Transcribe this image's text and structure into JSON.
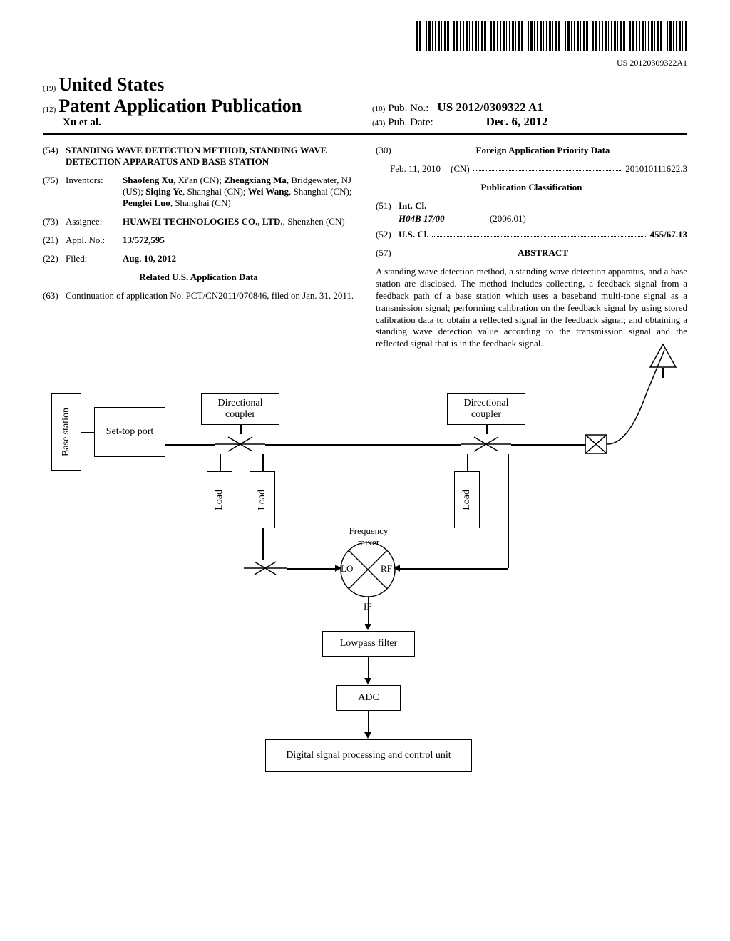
{
  "barcode_text": "US 20120309322A1",
  "header": {
    "code19": "(19)",
    "country": "United States",
    "code12": "(12)",
    "pub_type": "Patent Application Publication",
    "authors": "Xu et al.",
    "code10": "(10)",
    "pubno_label": "Pub. No.:",
    "pubno": "US 2012/0309322 A1",
    "code43": "(43)",
    "pubdate_label": "Pub. Date:",
    "pubdate": "Dec. 6, 2012"
  },
  "left_col": {
    "f54": {
      "code": "(54)",
      "value": "STANDING WAVE DETECTION METHOD, STANDING WAVE DETECTION APPARATUS AND BASE STATION"
    },
    "f75": {
      "code": "(75)",
      "label": "Inventors:",
      "value_html": "<b>Shaofeng Xu</b>, Xi'an (CN); <b>Zhengxiang Ma</b>, Bridgewater, NJ (US); <b>Siqing Ye</b>, Shanghai (CN); <b>Wei Wang</b>, Shanghai (CN); <b>Pengfei Luo</b>, Shanghai (CN)"
    },
    "f73": {
      "code": "(73)",
      "label": "Assignee:",
      "value_html": "<b>HUAWEI TECHNOLOGIES CO., LTD.</b>, Shenzhen (CN)"
    },
    "f21": {
      "code": "(21)",
      "label": "Appl. No.:",
      "value": "13/572,595"
    },
    "f22": {
      "code": "(22)",
      "label": "Filed:",
      "value": "Aug. 10, 2012"
    },
    "related_heading": "Related U.S. Application Data",
    "f63": {
      "code": "(63)",
      "value": "Continuation of application No. PCT/CN2011/070846, filed on Jan. 31, 2011."
    }
  },
  "right_col": {
    "f30": {
      "code": "(30)",
      "heading": "Foreign Application Priority Data"
    },
    "foreign_row": {
      "date": "Feb. 11, 2010",
      "country": "(CN)",
      "number": "201010111622.3"
    },
    "class_heading": "Publication Classification",
    "f51": {
      "code": "(51)",
      "label": "Int. Cl.",
      "cls_code": "H04B 17/00",
      "cls_date": "(2006.01)"
    },
    "f52": {
      "code": "(52)",
      "label": "U.S. Cl.",
      "value": "455/67.13"
    },
    "f57": {
      "code": "(57)",
      "heading": "ABSTRACT"
    },
    "abstract": "A standing wave detection method, a standing wave detection apparatus, and a base station are disclosed. The method includes collecting, a feedback signal from a feedback path of a base station which uses a baseband multi-tone signal as a transmission signal; performing calibration on the feedback signal by using stored calibration data to obtain a reflected signal in the feedback signal; and obtaining a standing wave detection value according to the transmission signal and the reflected signal that is in the feedback signal."
  },
  "figure": {
    "base_station": "Base station",
    "settop": "Set-top port",
    "dir_coupler": "Directional coupler",
    "load": "Load",
    "freq_mixer": "Frequency mixer",
    "lo": "LO",
    "rf": "RF",
    "if": "IF",
    "lowpass": "Lowpass filter",
    "adc": "ADC",
    "dsp": "Digital signal processing and control unit"
  }
}
